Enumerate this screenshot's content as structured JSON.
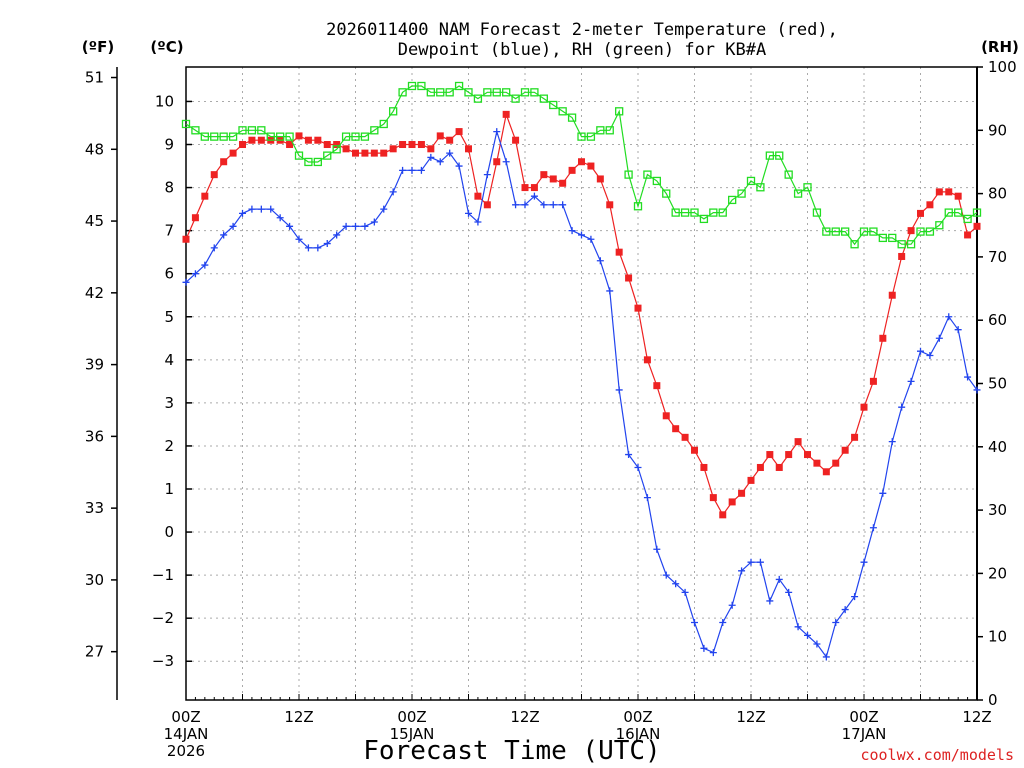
{
  "chart_data": {
    "type": "line",
    "title_line1": "2026011400 NAM Forecast 2-meter Temperature (red),",
    "title_line2": "Dewpoint (blue), RH (green) for KB#A",
    "unit_f": "(ºF)",
    "unit_c": "(ºC)",
    "unit_rh": "(RH)",
    "xlabel": "Forecast Time (UTC)",
    "credit": "coolwx.com/models",
    "x_range_hours": [
      0,
      84
    ],
    "x_ticks": [
      {
        "hour": 0,
        "label": "00Z",
        "sub1": "14JAN",
        "sub2": "2026"
      },
      {
        "hour": 12,
        "label": "12Z",
        "sub1": "",
        "sub2": ""
      },
      {
        "hour": 24,
        "label": "00Z",
        "sub1": "15JAN",
        "sub2": ""
      },
      {
        "hour": 36,
        "label": "12Z",
        "sub1": "",
        "sub2": ""
      },
      {
        "hour": 48,
        "label": "00Z",
        "sub1": "16JAN",
        "sub2": ""
      },
      {
        "hour": 60,
        "label": "12Z",
        "sub1": "",
        "sub2": ""
      },
      {
        "hour": 72,
        "label": "00Z",
        "sub1": "17JAN",
        "sub2": ""
      },
      {
        "hour": 84,
        "label": "12Z",
        "sub1": "",
        "sub2": ""
      }
    ],
    "celsius_range": [
      -3.9,
      10.8
    ],
    "celsius_ticks": [
      "-3",
      "-2",
      "-1",
      "0",
      "1",
      "2",
      "3",
      "4",
      "5",
      "6",
      "7",
      "8",
      "9",
      "10"
    ],
    "fahrenheit_ticks": [
      "27",
      "30",
      "33",
      "36",
      "39",
      "42",
      "45",
      "48",
      "51"
    ],
    "rh_range": [
      0,
      100
    ],
    "rh_ticks": [
      "0",
      "10",
      "20",
      "30",
      "40",
      "50",
      "60",
      "70",
      "80",
      "90",
      "100"
    ],
    "series": [
      {
        "name": "Temperature",
        "unit": "C",
        "color": "#ee2222",
        "marker": "filled-square",
        "hours": [
          0,
          1,
          2,
          3,
          4,
          5,
          6,
          7,
          8,
          9,
          10,
          11,
          12,
          13,
          14,
          15,
          16,
          17,
          18,
          19,
          20,
          21,
          22,
          23,
          24,
          25,
          26,
          27,
          28,
          29,
          30,
          31,
          32,
          33,
          34,
          35,
          36,
          37,
          38,
          39,
          40,
          41,
          42,
          43,
          44,
          45,
          46,
          47,
          48,
          49,
          50,
          51,
          52,
          53,
          54,
          55,
          56,
          57,
          58,
          59,
          60,
          61,
          62,
          63,
          64,
          65,
          66,
          67,
          68,
          69,
          70,
          71,
          72,
          73,
          74,
          75,
          76,
          77,
          78,
          79,
          80,
          81,
          82,
          83,
          84
        ],
        "values": [
          6.8,
          7.3,
          7.8,
          8.3,
          8.6,
          8.8,
          9.0,
          9.1,
          9.1,
          9.1,
          9.1,
          9.0,
          9.2,
          9.1,
          9.1,
          9.0,
          9.0,
          8.9,
          8.8,
          8.8,
          8.8,
          8.8,
          8.9,
          9.0,
          9.0,
          9.0,
          8.9,
          9.2,
          9.1,
          9.3,
          8.9,
          7.8,
          7.6,
          8.6,
          9.7,
          9.1,
          8.0,
          8.0,
          8.3,
          8.2,
          8.1,
          8.4,
          8.6,
          8.5,
          8.2,
          7.6,
          6.5,
          5.9,
          5.2,
          4.0,
          3.4,
          2.7,
          2.4,
          2.2,
          1.9,
          1.5,
          0.8,
          0.4,
          0.7,
          0.9,
          1.2,
          1.5,
          1.8,
          1.5,
          1.8,
          2.1,
          1.8,
          1.6,
          1.4,
          1.6,
          1.9,
          2.2,
          2.9,
          3.5,
          4.5,
          5.5,
          6.4,
          7.0,
          7.4,
          7.6,
          7.9,
          7.9,
          7.8,
          6.9,
          7.1
        ]
      },
      {
        "name": "Dewpoint",
        "unit": "C",
        "color": "#2244ee",
        "marker": "plus",
        "hours": [
          0,
          1,
          2,
          3,
          4,
          5,
          6,
          7,
          8,
          9,
          10,
          11,
          12,
          13,
          14,
          15,
          16,
          17,
          18,
          19,
          20,
          21,
          22,
          23,
          24,
          25,
          26,
          27,
          28,
          29,
          30,
          31,
          32,
          33,
          34,
          35,
          36,
          37,
          38,
          39,
          40,
          41,
          42,
          43,
          44,
          45,
          46,
          47,
          48,
          49,
          50,
          51,
          52,
          53,
          54,
          55,
          56,
          57,
          58,
          59,
          60,
          61,
          62,
          63,
          64,
          65,
          66,
          67,
          68,
          69,
          70,
          71,
          72,
          73,
          74,
          75,
          76,
          77,
          78,
          79,
          80,
          81,
          82,
          83,
          84
        ],
        "values": [
          5.8,
          6.0,
          6.2,
          6.6,
          6.9,
          7.1,
          7.4,
          7.5,
          7.5,
          7.5,
          7.3,
          7.1,
          6.8,
          6.6,
          6.6,
          6.7,
          6.9,
          7.1,
          7.1,
          7.1,
          7.2,
          7.5,
          7.9,
          8.4,
          8.4,
          8.4,
          8.7,
          8.6,
          8.8,
          8.5,
          7.4,
          7.2,
          8.3,
          9.3,
          8.6,
          7.6,
          7.6,
          7.8,
          7.6,
          7.6,
          7.6,
          7.0,
          6.9,
          6.8,
          6.3,
          5.6,
          3.3,
          1.8,
          1.5,
          0.8,
          -0.4,
          -1.0,
          -1.2,
          -1.4,
          -2.1,
          -2.7,
          -2.8,
          -2.1,
          -1.7,
          -0.9,
          -0.7,
          -0.7,
          -1.6,
          -1.1,
          -1.4,
          -2.2,
          -2.4,
          -2.6,
          -2.9,
          -2.1,
          -1.8,
          -1.5,
          -0.7,
          0.1,
          0.9,
          2.1,
          2.9,
          3.5,
          4.2,
          4.1,
          4.5,
          5.0,
          4.7,
          3.6,
          3.3
        ]
      },
      {
        "name": "RH",
        "unit": "%",
        "color": "#22dd22",
        "marker": "open-square",
        "hours": [
          0,
          1,
          2,
          3,
          4,
          5,
          6,
          7,
          8,
          9,
          10,
          11,
          12,
          13,
          14,
          15,
          16,
          17,
          18,
          19,
          20,
          21,
          22,
          23,
          24,
          25,
          26,
          27,
          28,
          29,
          30,
          31,
          32,
          33,
          34,
          35,
          36,
          37,
          38,
          39,
          40,
          41,
          42,
          43,
          44,
          45,
          46,
          47,
          48,
          49,
          50,
          51,
          52,
          53,
          54,
          55,
          56,
          57,
          58,
          59,
          60,
          61,
          62,
          63,
          64,
          65,
          66,
          67,
          68,
          69,
          70,
          71,
          72,
          73,
          74,
          75,
          76,
          77,
          78,
          79,
          80,
          81,
          82,
          83,
          84
        ],
        "values": [
          91,
          90,
          89,
          89,
          89,
          89,
          90,
          90,
          90,
          89,
          89,
          89,
          86,
          85,
          85,
          86,
          87,
          89,
          89,
          89,
          90,
          91,
          93,
          96,
          97,
          97,
          96,
          96,
          96,
          97,
          96,
          95,
          96,
          96,
          96,
          95,
          96,
          96,
          95,
          94,
          93,
          92,
          89,
          89,
          90,
          90,
          93,
          83,
          78,
          83,
          82,
          80,
          77,
          77,
          77,
          76,
          77,
          77,
          79,
          80,
          82,
          81,
          86,
          86,
          83,
          80,
          81,
          77,
          74,
          74,
          74,
          72,
          74,
          74,
          73,
          73,
          72,
          72,
          74,
          74,
          75,
          77,
          77,
          76,
          77
        ]
      }
    ]
  }
}
